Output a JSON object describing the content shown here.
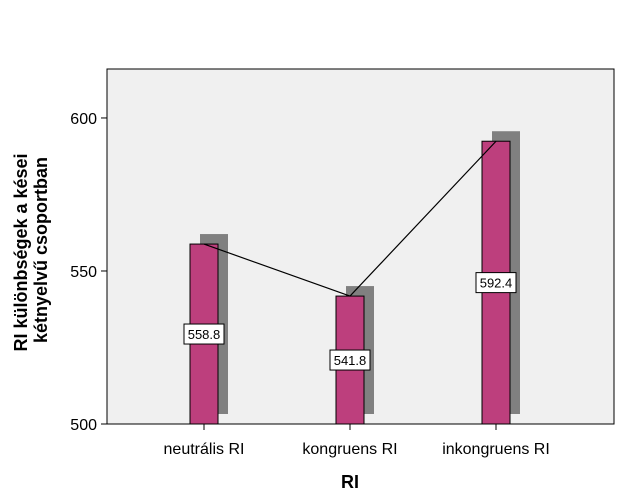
{
  "chart_data": {
    "type": "bar",
    "title": "",
    "xlabel": "RI",
    "ylabel_lines": [
      "RI különbségek a kései",
      "kétnyelvű csoportban"
    ],
    "categories": [
      "neutrális RI",
      "kongruens RI",
      "inkongruens RI"
    ],
    "values": [
      558.8,
      541.8,
      592.4
    ],
    "data_labels": [
      "558.8",
      "541.8",
      "592.4"
    ],
    "ylim": [
      500,
      616
    ],
    "yticks": [
      500,
      550,
      600
    ],
    "ytick_labels": [
      "500",
      "550",
      "600"
    ],
    "line_connecting_means": true,
    "grid": false,
    "bar_color": "#bd3f7d",
    "shadow_color": "#808080",
    "plot_background": "#f0f0f0"
  }
}
